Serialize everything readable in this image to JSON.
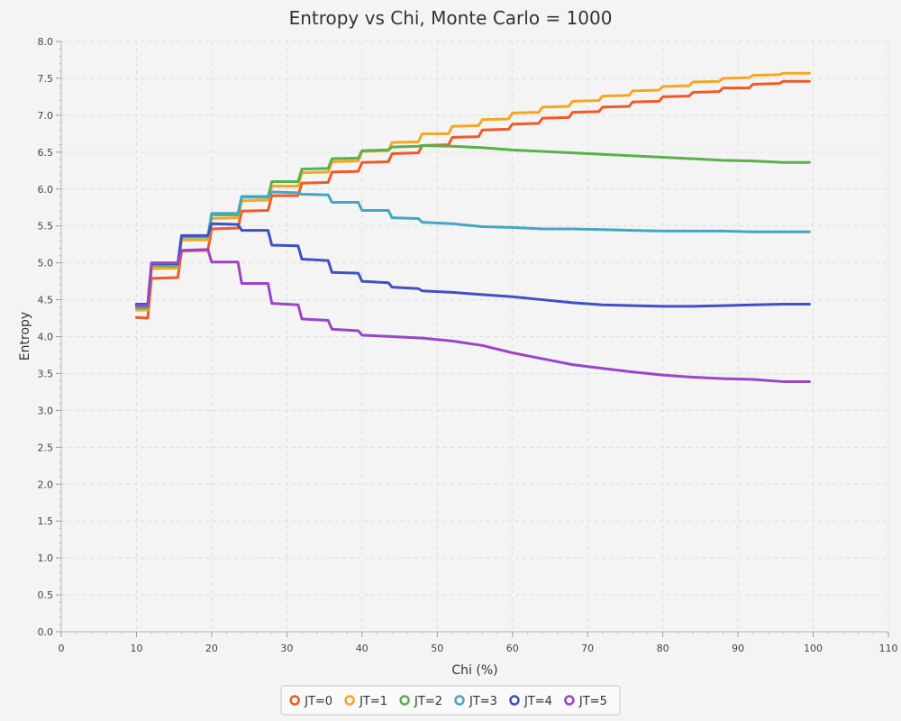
{
  "chart_data": {
    "type": "line",
    "title": "Entropy vs Chi, Monte Carlo = 1000",
    "xlabel": "Chi (%)",
    "ylabel": "Entropy",
    "xlim": [
      0,
      110
    ],
    "ylim": [
      0,
      8
    ],
    "x_ticks": [
      0,
      10,
      20,
      30,
      40,
      50,
      60,
      70,
      80,
      90,
      100,
      110
    ],
    "y_ticks": [
      0.0,
      0.5,
      1.0,
      1.5,
      2.0,
      2.5,
      3.0,
      3.5,
      4.0,
      4.5,
      5.0,
      5.5,
      6.0,
      6.5,
      7.0,
      7.5,
      8.0
    ],
    "grid": true,
    "legend_position": "bottom",
    "series": [
      {
        "name": "JT=0",
        "color": "#f05a28",
        "points": [
          [
            10,
            4.26
          ],
          [
            11.5,
            4.25
          ],
          [
            12,
            4.79
          ],
          [
            15.5,
            4.8
          ],
          [
            16,
            5.16
          ],
          [
            19.5,
            5.17
          ],
          [
            20,
            5.46
          ],
          [
            23.5,
            5.47
          ],
          [
            24,
            5.7
          ],
          [
            27.5,
            5.71
          ],
          [
            28,
            5.91
          ],
          [
            31.5,
            5.91
          ],
          [
            32,
            6.08
          ],
          [
            35.5,
            6.09
          ],
          [
            36,
            6.23
          ],
          [
            39.5,
            6.24
          ],
          [
            40,
            6.36
          ],
          [
            43.5,
            6.37
          ],
          [
            44,
            6.48
          ],
          [
            47.5,
            6.49
          ],
          [
            48,
            6.59
          ],
          [
            51.5,
            6.6
          ],
          [
            52,
            6.7
          ],
          [
            55.5,
            6.71
          ],
          [
            56,
            6.8
          ],
          [
            59.5,
            6.81
          ],
          [
            60,
            6.88
          ],
          [
            63.5,
            6.89
          ],
          [
            64,
            6.96
          ],
          [
            67.5,
            6.97
          ],
          [
            68,
            7.04
          ],
          [
            71.5,
            7.05
          ],
          [
            72,
            7.11
          ],
          [
            75.5,
            7.12
          ],
          [
            76,
            7.18
          ],
          [
            79.5,
            7.19
          ],
          [
            80,
            7.25
          ],
          [
            83.5,
            7.26
          ],
          [
            84,
            7.31
          ],
          [
            87.5,
            7.32
          ],
          [
            88,
            7.37
          ],
          [
            91.5,
            7.37
          ],
          [
            92,
            7.42
          ],
          [
            95.5,
            7.43
          ],
          [
            96,
            7.46
          ],
          [
            99.5,
            7.46
          ]
        ]
      },
      {
        "name": "JT=1",
        "color": "#f5a623",
        "points": [
          [
            10,
            4.36
          ],
          [
            11.5,
            4.36
          ],
          [
            12,
            4.92
          ],
          [
            15.5,
            4.93
          ],
          [
            16,
            5.31
          ],
          [
            19.5,
            5.31
          ],
          [
            20,
            5.6
          ],
          [
            23.5,
            5.61
          ],
          [
            24,
            5.84
          ],
          [
            27.5,
            5.85
          ],
          [
            28,
            6.04
          ],
          [
            31.5,
            6.04
          ],
          [
            32,
            6.22
          ],
          [
            35.5,
            6.23
          ],
          [
            36,
            6.37
          ],
          [
            39.5,
            6.38
          ],
          [
            40,
            6.51
          ],
          [
            43.5,
            6.52
          ],
          [
            44,
            6.63
          ],
          [
            47.5,
            6.64
          ],
          [
            48,
            6.75
          ],
          [
            51.5,
            6.75
          ],
          [
            52,
            6.85
          ],
          [
            55.5,
            6.86
          ],
          [
            56,
            6.94
          ],
          [
            59.5,
            6.95
          ],
          [
            60,
            7.03
          ],
          [
            63.5,
            7.04
          ],
          [
            64,
            7.11
          ],
          [
            67.5,
            7.12
          ],
          [
            68,
            7.19
          ],
          [
            71.5,
            7.2
          ],
          [
            72,
            7.26
          ],
          [
            75.5,
            7.27
          ],
          [
            76,
            7.33
          ],
          [
            79.5,
            7.34
          ],
          [
            80,
            7.39
          ],
          [
            83.5,
            7.4
          ],
          [
            84,
            7.45
          ],
          [
            87.5,
            7.46
          ],
          [
            88,
            7.5
          ],
          [
            91.5,
            7.51
          ],
          [
            92,
            7.54
          ],
          [
            95.5,
            7.55
          ],
          [
            96,
            7.57
          ],
          [
            99.5,
            7.57
          ]
        ]
      },
      {
        "name": "JT=2",
        "color": "#5ab04b",
        "points": [
          [
            10,
            4.39
          ],
          [
            11.5,
            4.39
          ],
          [
            12,
            4.96
          ],
          [
            15.5,
            4.96
          ],
          [
            16,
            5.35
          ],
          [
            19.5,
            5.35
          ],
          [
            20,
            5.65
          ],
          [
            23.5,
            5.65
          ],
          [
            24,
            5.89
          ],
          [
            27.5,
            5.89
          ],
          [
            28,
            6.1
          ],
          [
            31.5,
            6.1
          ],
          [
            32,
            6.27
          ],
          [
            35.5,
            6.28
          ],
          [
            36,
            6.41
          ],
          [
            39.5,
            6.42
          ],
          [
            40,
            6.52
          ],
          [
            43.5,
            6.53
          ],
          [
            44,
            6.57
          ],
          [
            47.5,
            6.58
          ],
          [
            48,
            6.59
          ],
          [
            52,
            6.58
          ],
          [
            56,
            6.56
          ],
          [
            60,
            6.53
          ],
          [
            64,
            6.51
          ],
          [
            68,
            6.49
          ],
          [
            72,
            6.47
          ],
          [
            76,
            6.45
          ],
          [
            80,
            6.43
          ],
          [
            84,
            6.41
          ],
          [
            88,
            6.39
          ],
          [
            92,
            6.38
          ],
          [
            96,
            6.36
          ],
          [
            99.5,
            6.36
          ]
        ]
      },
      {
        "name": "JT=3",
        "color": "#42a7c6",
        "points": [
          [
            10,
            4.42
          ],
          [
            11.5,
            4.42
          ],
          [
            12,
            4.98
          ],
          [
            15.5,
            4.98
          ],
          [
            16,
            5.36
          ],
          [
            19.5,
            5.36
          ],
          [
            20,
            5.67
          ],
          [
            23.5,
            5.67
          ],
          [
            24,
            5.9
          ],
          [
            27.5,
            5.9
          ],
          [
            28,
            5.96
          ],
          [
            31.5,
            5.95
          ],
          [
            32,
            5.93
          ],
          [
            35.5,
            5.92
          ],
          [
            36,
            5.82
          ],
          [
            39.5,
            5.82
          ],
          [
            40,
            5.71
          ],
          [
            43.5,
            5.71
          ],
          [
            44,
            5.61
          ],
          [
            47.5,
            5.6
          ],
          [
            48,
            5.55
          ],
          [
            52,
            5.53
          ],
          [
            56,
            5.49
          ],
          [
            60,
            5.48
          ],
          [
            64,
            5.46
          ],
          [
            68,
            5.46
          ],
          [
            72,
            5.45
          ],
          [
            76,
            5.44
          ],
          [
            80,
            5.43
          ],
          [
            84,
            5.43
          ],
          [
            88,
            5.43
          ],
          [
            92,
            5.42
          ],
          [
            96,
            5.42
          ],
          [
            99.5,
            5.42
          ]
        ]
      },
      {
        "name": "JT=4",
        "color": "#3f51c4",
        "points": [
          [
            10,
            4.44
          ],
          [
            11.5,
            4.44
          ],
          [
            12,
            4.99
          ],
          [
            15.5,
            4.99
          ],
          [
            16,
            5.37
          ],
          [
            19.5,
            5.37
          ],
          [
            20,
            5.53
          ],
          [
            23.5,
            5.52
          ],
          [
            24,
            5.44
          ],
          [
            27.5,
            5.44
          ],
          [
            28,
            5.24
          ],
          [
            31.5,
            5.23
          ],
          [
            32,
            5.05
          ],
          [
            35.5,
            5.03
          ],
          [
            36,
            4.87
          ],
          [
            39.5,
            4.86
          ],
          [
            40,
            4.75
          ],
          [
            43.5,
            4.73
          ],
          [
            44,
            4.67
          ],
          [
            47.5,
            4.65
          ],
          [
            48,
            4.62
          ],
          [
            52,
            4.6
          ],
          [
            56,
            4.57
          ],
          [
            60,
            4.54
          ],
          [
            64,
            4.5
          ],
          [
            68,
            4.46
          ],
          [
            72,
            4.43
          ],
          [
            76,
            4.42
          ],
          [
            80,
            4.41
          ],
          [
            84,
            4.41
          ],
          [
            88,
            4.42
          ],
          [
            92,
            4.43
          ],
          [
            96,
            4.44
          ],
          [
            99.5,
            4.44
          ]
        ]
      },
      {
        "name": "JT=5",
        "color": "#9b45c6",
        "points": [
          [
            10,
            4.42
          ],
          [
            11.5,
            4.42
          ],
          [
            12,
            5.0
          ],
          [
            15.5,
            5.0
          ],
          [
            16,
            5.17
          ],
          [
            19.5,
            5.18
          ],
          [
            20,
            5.01
          ],
          [
            23.5,
            5.01
          ],
          [
            24,
            4.72
          ],
          [
            27.5,
            4.72
          ],
          [
            28,
            4.45
          ],
          [
            31.5,
            4.43
          ],
          [
            32,
            4.24
          ],
          [
            35.5,
            4.22
          ],
          [
            36,
            4.1
          ],
          [
            39.5,
            4.08
          ],
          [
            40,
            4.02
          ],
          [
            44,
            4.0
          ],
          [
            48,
            3.98
          ],
          [
            52,
            3.94
          ],
          [
            56,
            3.88
          ],
          [
            60,
            3.78
          ],
          [
            64,
            3.7
          ],
          [
            68,
            3.62
          ],
          [
            72,
            3.57
          ],
          [
            76,
            3.52
          ],
          [
            80,
            3.48
          ],
          [
            84,
            3.45
          ],
          [
            88,
            3.43
          ],
          [
            92,
            3.42
          ],
          [
            96,
            3.39
          ],
          [
            99.5,
            3.39
          ]
        ]
      }
    ]
  }
}
